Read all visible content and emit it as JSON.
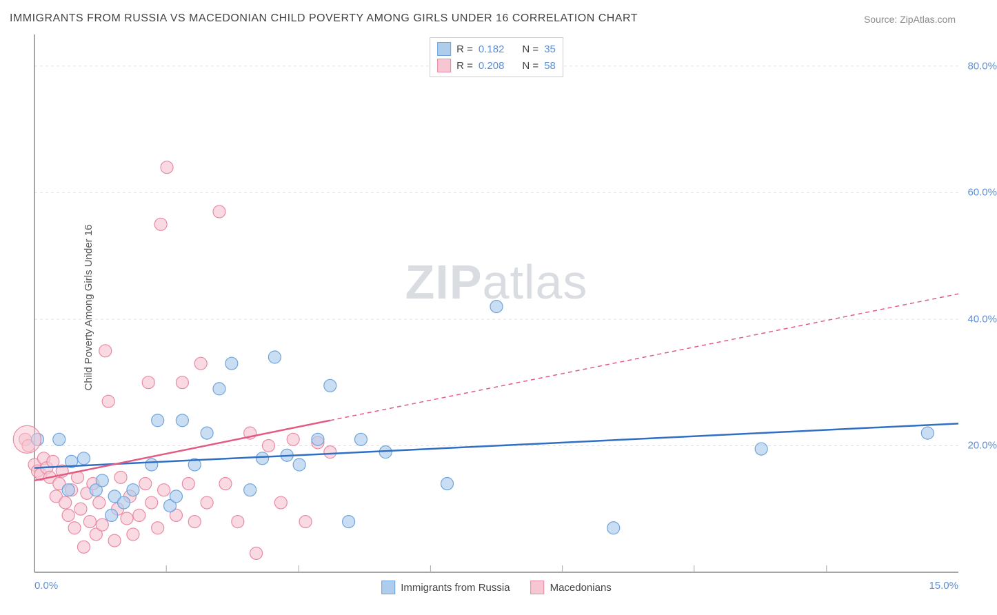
{
  "title": "IMMIGRANTS FROM RUSSIA VS MACEDONIAN CHILD POVERTY AMONG GIRLS UNDER 16 CORRELATION CHART",
  "source": "Source: ZipAtlas.com",
  "ylabel": "Child Poverty Among Girls Under 16",
  "watermark_bold": "ZIP",
  "watermark_light": "atlas",
  "chart": {
    "type": "scatter",
    "xlim": [
      0,
      15
    ],
    "ylim": [
      0,
      85
    ],
    "x_ticks": [
      0.0,
      15.0
    ],
    "x_tick_labels": [
      "0.0%",
      "15.0%"
    ],
    "x_minor_ticks": [
      2.14,
      4.29,
      6.43,
      8.57,
      10.71,
      12.86
    ],
    "y_ticks": [
      20.0,
      40.0,
      60.0,
      80.0
    ],
    "y_tick_labels": [
      "20.0%",
      "40.0%",
      "60.0%",
      "80.0%"
    ],
    "background_color": "#ffffff",
    "grid_color": "#e2e2e2",
    "axis_color": "#888888",
    "tick_mark_color": "#aaaaaa",
    "marker_radius": 9,
    "marker_stroke_width": 1.2,
    "trend_line_width": 2.5,
    "trend_dash": "6,5"
  },
  "series": [
    {
      "key": "russia",
      "label": "Immigrants from Russia",
      "fill": "#aecdec",
      "stroke": "#6fa3db",
      "line_color": "#2f6fc4",
      "R": "0.182",
      "N": "35",
      "trend": {
        "x1": 0,
        "y1": 16.5,
        "x2": 15,
        "y2": 23.5
      },
      "points": [
        [
          0.05,
          21
        ],
        [
          0.4,
          21
        ],
        [
          0.55,
          13
        ],
        [
          0.6,
          17.5
        ],
        [
          0.8,
          18
        ],
        [
          1.0,
          13
        ],
        [
          1.1,
          14.5
        ],
        [
          1.25,
          9
        ],
        [
          1.3,
          12
        ],
        [
          1.45,
          11
        ],
        [
          1.6,
          13
        ],
        [
          1.9,
          17
        ],
        [
          2.0,
          24
        ],
        [
          2.2,
          10.5
        ],
        [
          2.3,
          12
        ],
        [
          2.4,
          24
        ],
        [
          2.6,
          17
        ],
        [
          2.8,
          22
        ],
        [
          3.0,
          29
        ],
        [
          3.2,
          33
        ],
        [
          3.5,
          13
        ],
        [
          3.7,
          18
        ],
        [
          3.9,
          34
        ],
        [
          4.1,
          18.5
        ],
        [
          4.3,
          17
        ],
        [
          4.6,
          21
        ],
        [
          4.8,
          29.5
        ],
        [
          5.1,
          8
        ],
        [
          5.3,
          21
        ],
        [
          5.7,
          19
        ],
        [
          6.7,
          14
        ],
        [
          7.5,
          42
        ],
        [
          9.4,
          7
        ],
        [
          11.8,
          19.5
        ],
        [
          14.5,
          22
        ]
      ]
    },
    {
      "key": "macedonian",
      "label": "Macedonians",
      "fill": "#f6c6d2",
      "stroke": "#e98aa3",
      "line_color": "#e35b82",
      "R": "0.208",
      "N": "58",
      "trend_solid": {
        "x1": 0,
        "y1": 14.5,
        "x2": 4.8,
        "y2": 24
      },
      "trend_dash": {
        "x1": 4.8,
        "y1": 24,
        "x2": 15,
        "y2": 44
      },
      "points": [
        [
          -0.15,
          21
        ],
        [
          -0.1,
          20
        ],
        [
          0.0,
          17
        ],
        [
          0.05,
          16
        ],
        [
          0.1,
          15.5
        ],
        [
          0.15,
          18
        ],
        [
          0.2,
          16.5
        ],
        [
          0.25,
          15
        ],
        [
          0.3,
          17.5
        ],
        [
          0.35,
          12
        ],
        [
          0.4,
          14
        ],
        [
          0.45,
          16
        ],
        [
          0.5,
          11
        ],
        [
          0.55,
          9
        ],
        [
          0.6,
          13
        ],
        [
          0.65,
          7
        ],
        [
          0.7,
          15
        ],
        [
          0.75,
          10
        ],
        [
          0.8,
          4
        ],
        [
          0.85,
          12.5
        ],
        [
          0.9,
          8
        ],
        [
          0.95,
          14
        ],
        [
          1.0,
          6
        ],
        [
          1.05,
          11
        ],
        [
          1.1,
          7.5
        ],
        [
          1.15,
          35
        ],
        [
          1.2,
          27
        ],
        [
          1.3,
          5
        ],
        [
          1.35,
          10
        ],
        [
          1.4,
          15
        ],
        [
          1.5,
          8.5
        ],
        [
          1.55,
          12
        ],
        [
          1.6,
          6
        ],
        [
          1.7,
          9
        ],
        [
          1.8,
          14
        ],
        [
          1.85,
          30
        ],
        [
          1.9,
          11
        ],
        [
          2.0,
          7
        ],
        [
          2.05,
          55
        ],
        [
          2.1,
          13
        ],
        [
          2.15,
          64
        ],
        [
          2.3,
          9
        ],
        [
          2.4,
          30
        ],
        [
          2.5,
          14
        ],
        [
          2.6,
          8
        ],
        [
          2.7,
          33
        ],
        [
          2.8,
          11
        ],
        [
          3.0,
          57
        ],
        [
          3.1,
          14
        ],
        [
          3.3,
          8
        ],
        [
          3.5,
          22
        ],
        [
          3.6,
          3
        ],
        [
          3.8,
          20
        ],
        [
          4.0,
          11
        ],
        [
          4.2,
          21
        ],
        [
          4.4,
          8
        ],
        [
          4.6,
          20.5
        ],
        [
          4.8,
          19
        ]
      ]
    }
  ],
  "legend_top": {
    "R_label": "R  =",
    "N_label": "N  ="
  },
  "legend_bottom_labels": [
    "Immigrants from Russia",
    "Macedonians"
  ]
}
